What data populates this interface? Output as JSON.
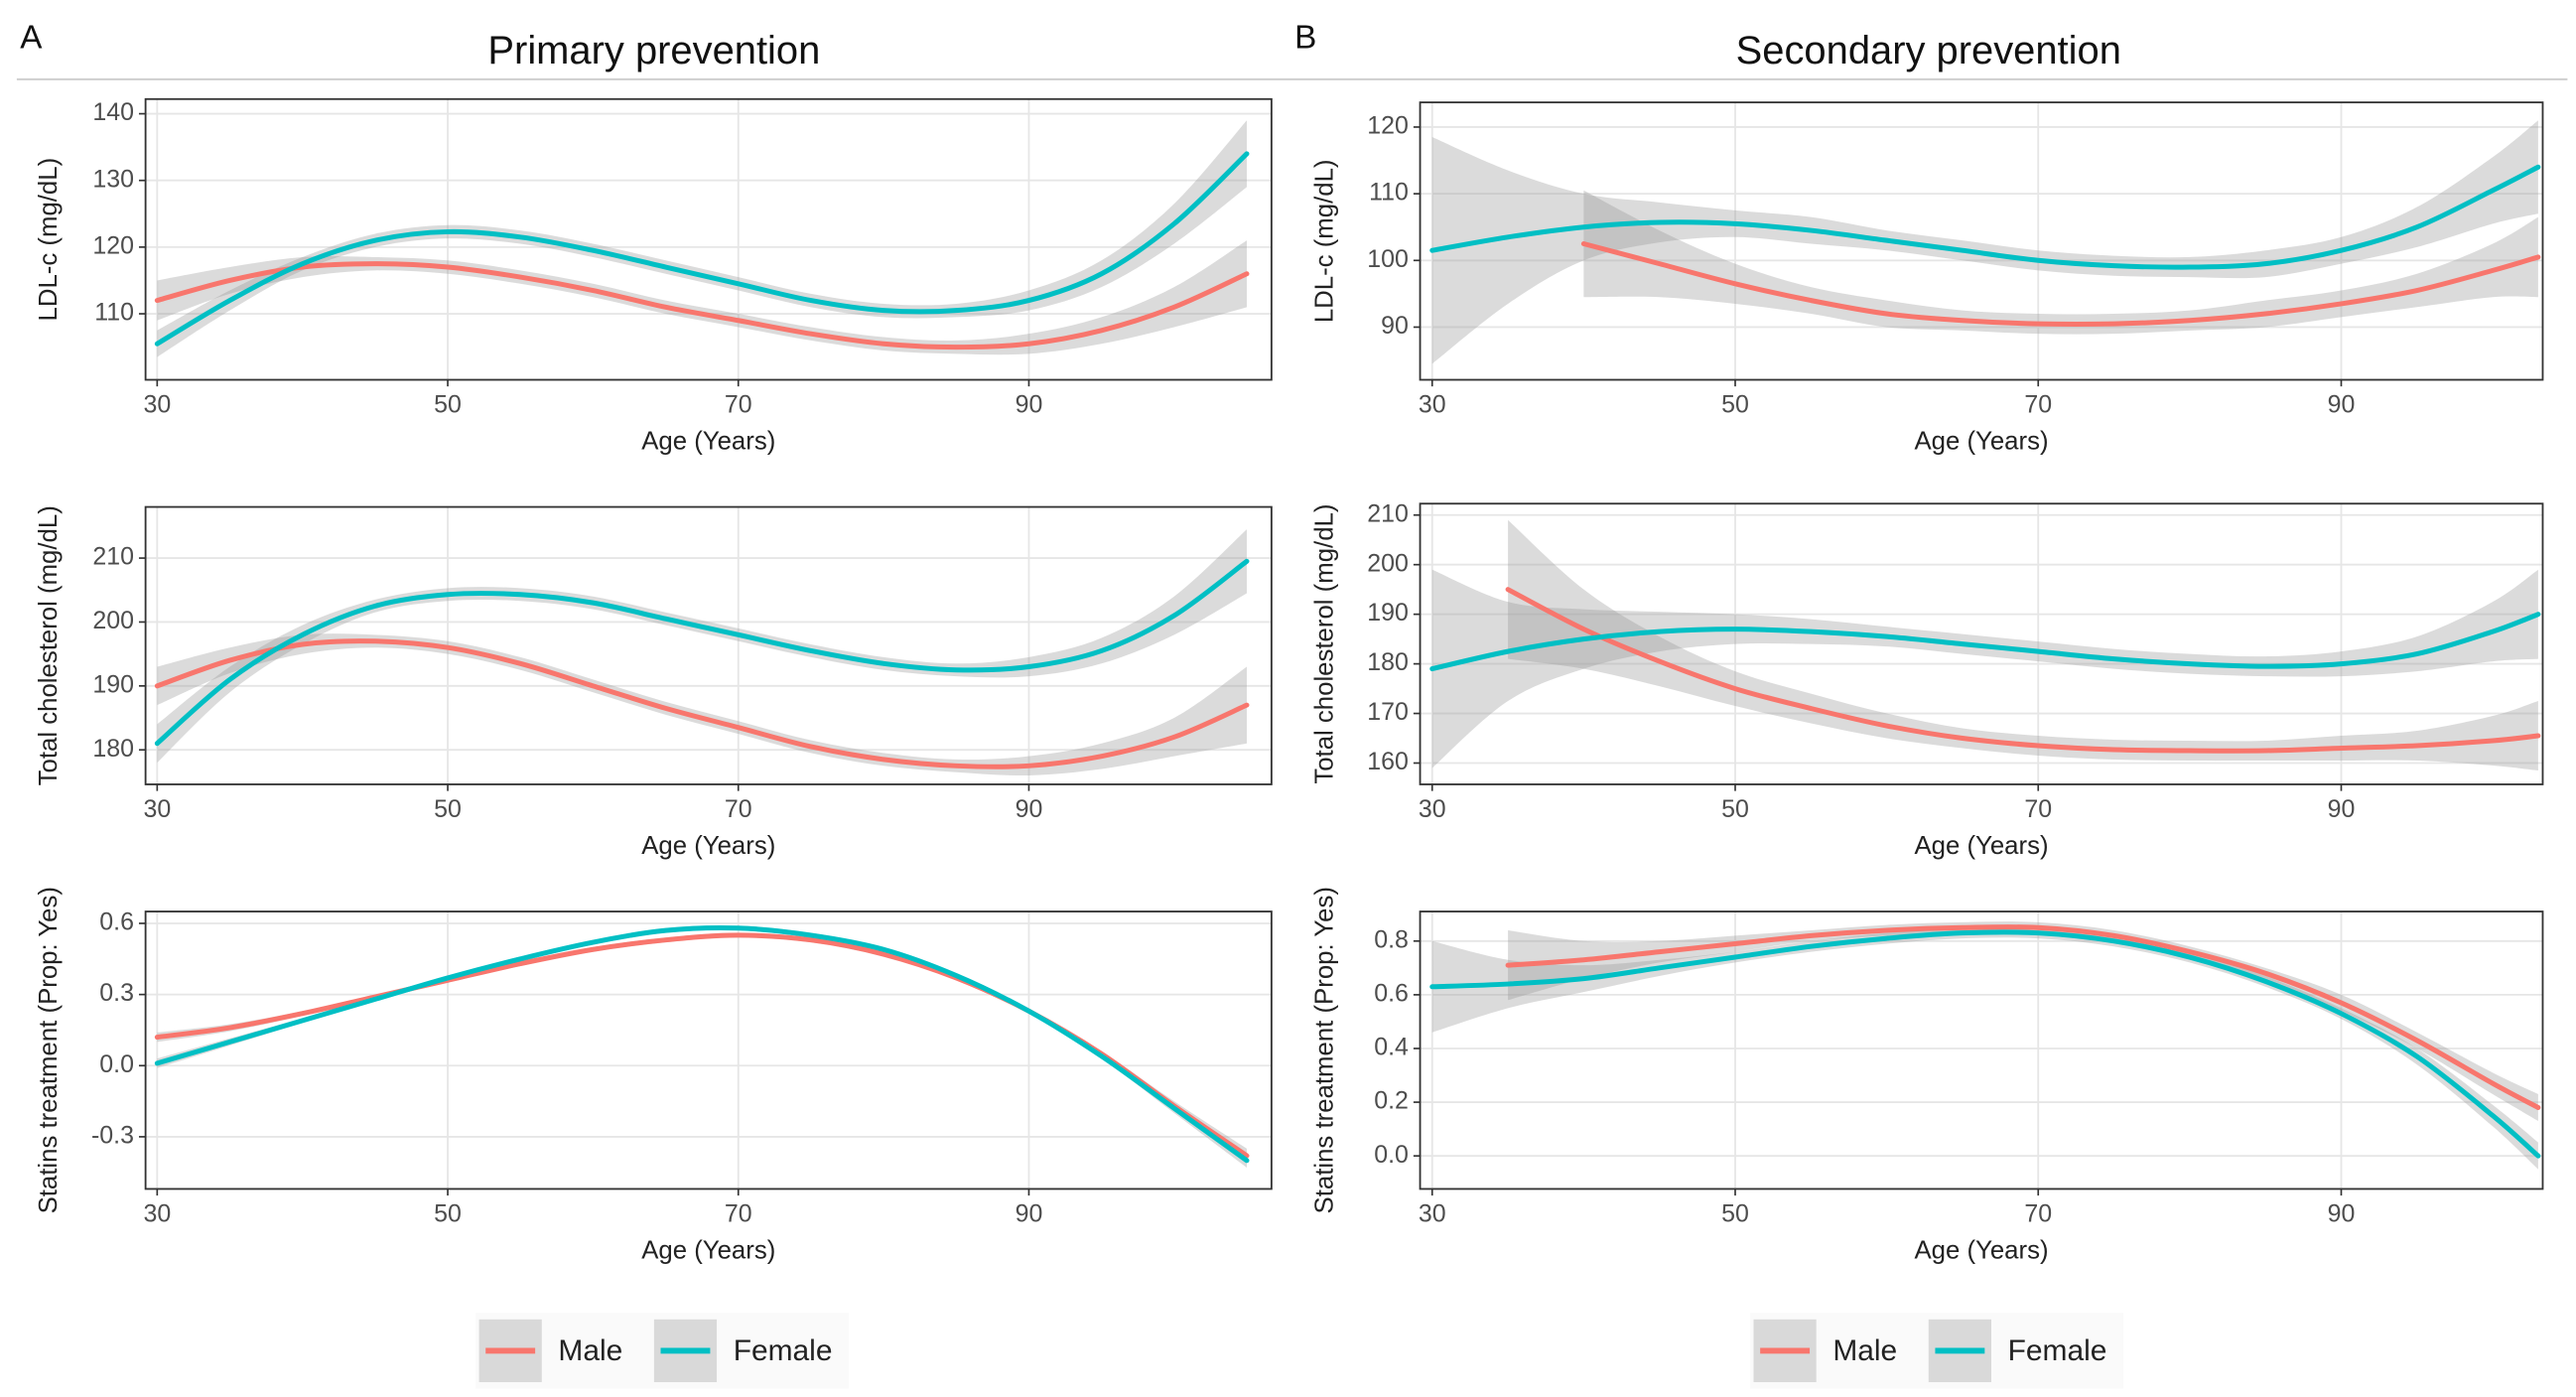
{
  "panels": [
    {
      "label": "A",
      "title": "Primary prevention"
    },
    {
      "label": "B",
      "title": "Secondary prevention"
    }
  ],
  "chart_data": [
    {
      "type": "line",
      "x_label": "Age (Years)",
      "y_label": "LDL-c (mg/dL)",
      "x": [
        30,
        35,
        40,
        45,
        50,
        55,
        60,
        65,
        70,
        75,
        80,
        85,
        90,
        95,
        100,
        105
      ],
      "xlim": [
        29.2,
        106.7
      ],
      "ylim": [
        100.1,
        142.2
      ],
      "xticks": [
        30,
        50,
        70,
        90
      ],
      "yticks": [
        110,
        120,
        130,
        140
      ],
      "grid": true,
      "series": [
        {
          "name": "Male",
          "color": "#F8766D",
          "values": [
            112,
            115,
            117,
            117.5,
            117,
            115.5,
            113.5,
            111,
            109,
            107,
            105.5,
            105,
            105.5,
            107.5,
            111,
            116
          ],
          "errors": [
            3,
            2,
            1.5,
            1,
            1,
            1,
            1,
            1,
            1,
            1,
            1,
            1,
            1.5,
            2,
            3,
            5
          ]
        },
        {
          "name": "Female",
          "color": "#00BFC4",
          "values": [
            105.5,
            112,
            117.5,
            121,
            122.3,
            121.5,
            119.5,
            117,
            114.5,
            112,
            110.5,
            110.5,
            112,
            116,
            123.5,
            134
          ],
          "errors": [
            2,
            1.5,
            1,
            1,
            1,
            1,
            1,
            1,
            1,
            1,
            1,
            1,
            1.5,
            2,
            3,
            5
          ]
        }
      ]
    },
    {
      "type": "line",
      "x_label": "Age (Years)",
      "y_label": "Total cholesterol (mg/dL)",
      "x": [
        30,
        35,
        40,
        45,
        50,
        55,
        60,
        65,
        70,
        75,
        80,
        85,
        90,
        95,
        100,
        105
      ],
      "xlim": [
        29.2,
        106.7
      ],
      "ylim": [
        174.6,
        218
      ],
      "xticks": [
        30,
        50,
        70,
        90
      ],
      "yticks": [
        180,
        190,
        200,
        210
      ],
      "grid": true,
      "series": [
        {
          "name": "Male",
          "color": "#F8766D",
          "values": [
            190,
            194,
            196.5,
            197,
            196,
            193.5,
            190,
            186.5,
            183.5,
            180.5,
            178.5,
            177.5,
            177.5,
            179,
            182,
            187
          ],
          "errors": [
            3,
            2,
            1.5,
            1,
            1,
            1,
            1,
            1,
            1,
            1,
            1,
            1,
            1.5,
            2,
            3,
            6
          ]
        },
        {
          "name": "Female",
          "color": "#00BFC4",
          "values": [
            181,
            191,
            198,
            202.5,
            204.3,
            204.3,
            203,
            200.5,
            198,
            195.5,
            193.5,
            192.5,
            193,
            195.5,
            201,
            209.5
          ],
          "errors": [
            3,
            2,
            1.5,
            1,
            1,
            1,
            1,
            1,
            1,
            1,
            1,
            1,
            1.5,
            2,
            3,
            5
          ]
        }
      ]
    },
    {
      "type": "line",
      "x_label": "Age (Years)",
      "y_label": "Statins treatment (Prop: Yes)",
      "x": [
        30,
        35,
        40,
        45,
        50,
        55,
        60,
        65,
        70,
        75,
        80,
        85,
        90,
        95,
        100,
        105
      ],
      "xlim": [
        29.2,
        106.7
      ],
      "ylim": [
        -0.52,
        0.65
      ],
      "xticks": [
        30,
        50,
        70,
        90
      ],
      "yticks": [
        -0.3,
        {
          "value": 0,
          "label": "0.0"
        },
        0.3,
        0.6
      ],
      "grid": true,
      "series": [
        {
          "name": "Male",
          "color": "#F8766D",
          "values": [
            0.12,
            0.16,
            0.22,
            0.29,
            0.36,
            0.43,
            0.49,
            0.53,
            0.55,
            0.53,
            0.47,
            0.37,
            0.23,
            0.05,
            -0.17,
            -0.38
          ],
          "errors": [
            0.02,
            0.015,
            0.01,
            0.01,
            0.01,
            0.01,
            0.01,
            0.01,
            0.01,
            0.01,
            0.01,
            0.01,
            0.01,
            0.01,
            0.02,
            0.03
          ]
        },
        {
          "name": "Female",
          "color": "#00BFC4",
          "values": [
            0.01,
            0.1,
            0.19,
            0.28,
            0.37,
            0.45,
            0.52,
            0.57,
            0.58,
            0.55,
            0.49,
            0.38,
            0.23,
            0.04,
            -0.18,
            -0.4
          ],
          "errors": [
            0.02,
            0.015,
            0.01,
            0.01,
            0.01,
            0.01,
            0.01,
            0.01,
            0.01,
            0.01,
            0.01,
            0.01,
            0.01,
            0.01,
            0.02,
            0.03
          ]
        }
      ]
    },
    {
      "type": "line",
      "x_label": "Age (Years)",
      "y_label": "LDL-c (mg/dL)",
      "x": [
        30,
        35,
        40,
        45,
        50,
        55,
        60,
        65,
        70,
        75,
        80,
        85,
        90,
        95,
        100,
        103
      ],
      "xlim": [
        29.2,
        103.3
      ],
      "ylim": [
        82.1,
        123.7
      ],
      "xticks": [
        30,
        50,
        70,
        90
      ],
      "yticks": [
        90,
        100,
        110,
        120
      ],
      "grid": true,
      "series": [
        {
          "name": "Male",
          "color": "#F8766D",
          "values": [
            null,
            null,
            102.5,
            99.5,
            96.5,
            94,
            92,
            91,
            90.5,
            90.5,
            91,
            92,
            93.5,
            95.5,
            98.5,
            100.5
          ],
          "errors": [
            null,
            null,
            8,
            5,
            3,
            2,
            2,
            1.5,
            1.5,
            1.5,
            1.5,
            2,
            2,
            2.5,
            4,
            6
          ]
        },
        {
          "name": "Female",
          "color": "#00BFC4",
          "values": [
            101.5,
            103.5,
            105,
            105.7,
            105.5,
            104.5,
            103,
            101.5,
            100,
            99.2,
            99,
            99.5,
            101.5,
            105,
            110.5,
            114
          ],
          "errors": [
            17,
            10,
            5,
            3,
            2,
            2,
            1.5,
            1.5,
            1.5,
            1.5,
            1.5,
            2,
            2,
            3,
            5,
            7
          ]
        }
      ]
    },
    {
      "type": "line",
      "x_label": "Age (Years)",
      "y_label": "Total cholesterol (mg/dL)",
      "x": [
        30,
        35,
        40,
        45,
        50,
        55,
        60,
        65,
        70,
        75,
        80,
        85,
        90,
        95,
        100,
        103
      ],
      "xlim": [
        29.2,
        103.3
      ],
      "ylim": [
        155.7,
        212.3
      ],
      "xticks": [
        30,
        50,
        70,
        90
      ],
      "yticks": [
        160,
        170,
        180,
        190,
        200,
        210
      ],
      "grid": true,
      "series": [
        {
          "name": "Male",
          "color": "#F8766D",
          "values": [
            null,
            195,
            187,
            180.5,
            175,
            171,
            167.5,
            165,
            163.5,
            162.7,
            162.5,
            162.5,
            163,
            163.5,
            164.5,
            165.5
          ],
          "errors": [
            null,
            14,
            8,
            5,
            3.5,
            3,
            2.5,
            2,
            2,
            2,
            2,
            2,
            2.5,
            3,
            5,
            7
          ]
        },
        {
          "name": "Female",
          "color": "#00BFC4",
          "values": [
            179,
            182.5,
            185,
            186.5,
            187,
            186.5,
            185.5,
            184,
            182.5,
            181,
            180,
            179.5,
            180,
            182,
            186.5,
            190
          ],
          "errors": [
            20,
            10,
            6,
            4,
            3,
            2.5,
            2,
            2,
            2,
            2,
            2,
            2,
            2.5,
            3.5,
            6,
            9
          ]
        }
      ]
    },
    {
      "type": "line",
      "x_label": "Age (Years)",
      "y_label": "Statins treatment (Prop: Yes)",
      "x": [
        30,
        35,
        40,
        45,
        50,
        55,
        60,
        65,
        70,
        75,
        80,
        85,
        90,
        95,
        100,
        103
      ],
      "xlim": [
        29.2,
        103.3
      ],
      "ylim": [
        -0.123,
        0.91
      ],
      "xticks": [
        30,
        50,
        70,
        90
      ],
      "yticks": [
        {
          "value": 0,
          "label": "0.0"
        },
        0.2,
        0.4,
        0.6,
        0.8
      ],
      "grid": true,
      "series": [
        {
          "name": "Male",
          "color": "#F8766D",
          "values": [
            null,
            0.71,
            0.73,
            0.76,
            0.79,
            0.82,
            0.84,
            0.85,
            0.85,
            0.82,
            0.76,
            0.68,
            0.57,
            0.43,
            0.27,
            0.18
          ],
          "errors": [
            null,
            0.13,
            0.07,
            0.04,
            0.03,
            0.02,
            0.02,
            0.02,
            0.02,
            0.02,
            0.02,
            0.02,
            0.03,
            0.03,
            0.04,
            0.05
          ]
        },
        {
          "name": "Female",
          "color": "#00BFC4",
          "values": [
            0.63,
            0.64,
            0.66,
            0.7,
            0.74,
            0.78,
            0.81,
            0.83,
            0.83,
            0.8,
            0.74,
            0.65,
            0.53,
            0.37,
            0.15,
            0
          ],
          "errors": [
            0.17,
            0.09,
            0.05,
            0.03,
            0.02,
            0.02,
            0.02,
            0.02,
            0.02,
            0.02,
            0.02,
            0.02,
            0.02,
            0.03,
            0.04,
            0.05
          ]
        }
      ]
    }
  ]
}
